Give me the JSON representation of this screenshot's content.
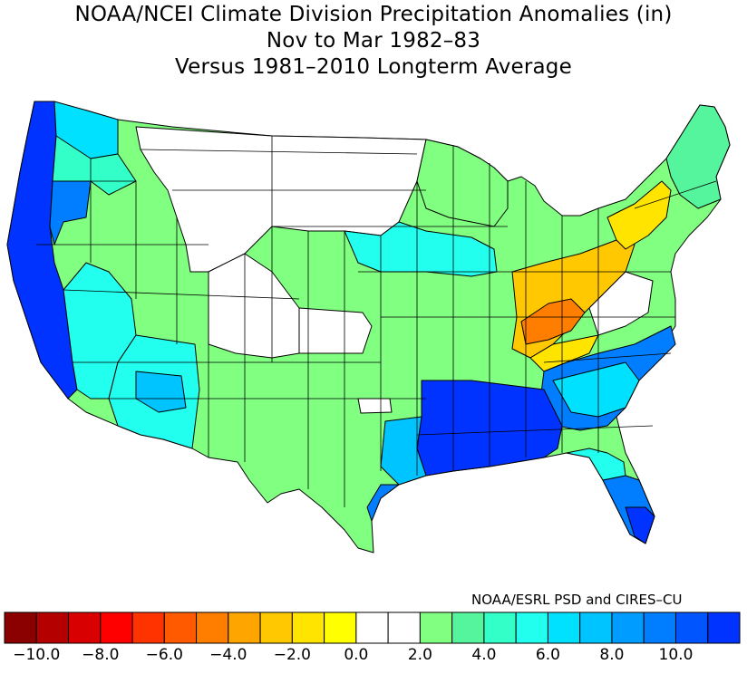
{
  "title": {
    "line1": "NOAA/NCEI Climate Division Precipitation Anomalies (in)",
    "line2": "Nov to Mar 1982–83",
    "line3": "Versus 1981–2010 Longterm Average"
  },
  "credit": "NOAA/ESRL PSD and CIRES–CU",
  "legend": {
    "colors": [
      "#8b0000",
      "#b50000",
      "#d80000",
      "#ff0000",
      "#ff3300",
      "#ff5a00",
      "#ff7e00",
      "#ffa500",
      "#ffc800",
      "#ffe400",
      "#ffff00",
      "#ffffff",
      "#ffffff",
      "#80ff80",
      "#55f59d",
      "#33ffc8",
      "#22ffee",
      "#00e0ff",
      "#00c4ff",
      "#009cff",
      "#007eff",
      "#0055ff",
      "#0033ff"
    ],
    "tick_labels": [
      "−10.0",
      "−8.0",
      "−6.0",
      "−4.0",
      "−2.0",
      "0.0",
      "2.0",
      "4.0",
      "6.0",
      "8.0",
      "10.0"
    ]
  },
  "map_colors": {
    "very_wet": "#0033ff",
    "wet_blue": "#007eff",
    "blue": "#00c4ff",
    "cyan": "#22ffee",
    "aqua": "#33ffc8",
    "green": "#80ff80",
    "near_normal": "#ffffff",
    "dry_yellow": "#ffc800",
    "dry_orange": "#ff7e00"
  }
}
